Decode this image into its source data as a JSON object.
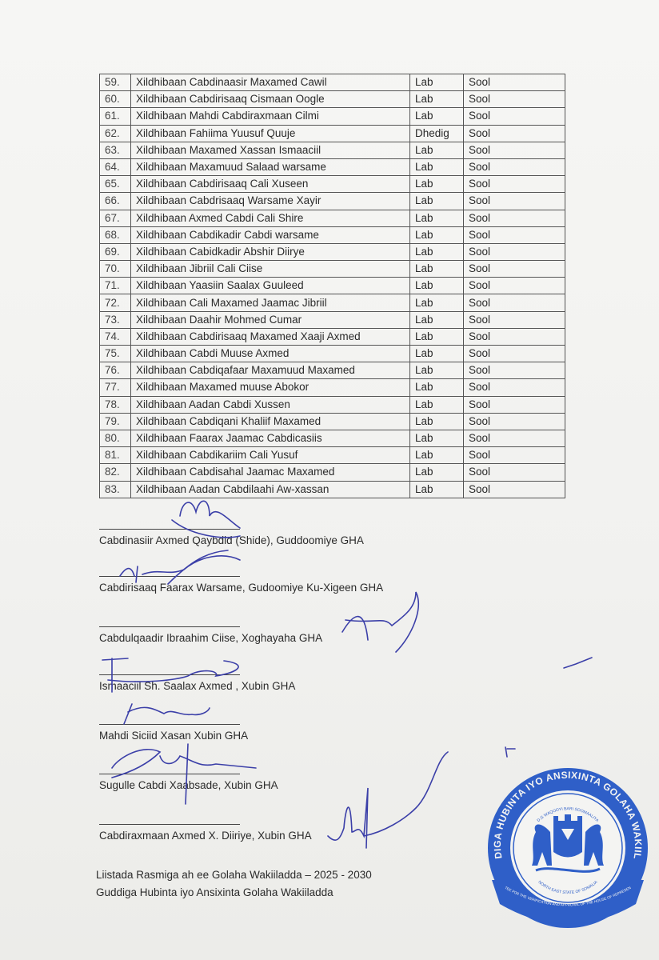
{
  "table": {
    "rows": [
      {
        "num": "59.",
        "name": "Xildhibaan Cabdinaasir Maxamed Cawil",
        "gender": "Lab",
        "region": "Sool"
      },
      {
        "num": "60.",
        "name": "Xildhibaan Cabdirisaaq Cismaan Oogle",
        "gender": "Lab",
        "region": "Sool"
      },
      {
        "num": "61.",
        "name": "Xildhibaan Mahdi Cabdiraxmaan Cilmi",
        "gender": "Lab",
        "region": "Sool"
      },
      {
        "num": "62.",
        "name": "Xildhibaan Fahiima Yuusuf Quuje",
        "gender": "Dhedig",
        "region": "Sool"
      },
      {
        "num": "63.",
        "name": "Xildhibaan Maxamed Xassan Ismaaciil",
        "gender": "Lab",
        "region": "Sool"
      },
      {
        "num": "64.",
        "name": "Xildhibaan Maxamuud Salaad warsame",
        "gender": "Lab",
        "region": "Sool"
      },
      {
        "num": "65.",
        "name": "Xildhibaan Cabdirisaaq Cali Xuseen",
        "gender": "Lab",
        "region": "Sool"
      },
      {
        "num": "66.",
        "name": "Xildhibaan Cabdrisaaq Warsame Xayir",
        "gender": "Lab",
        "region": "Sool"
      },
      {
        "num": "67.",
        "name": "Xildhibaan Axmed Cabdi Cali Shire",
        "gender": "Lab",
        "region": "Sool"
      },
      {
        "num": "68.",
        "name": "Xildhibaan Cabdikadir Cabdi warsame",
        "gender": "Lab",
        "region": "Sool"
      },
      {
        "num": "69.",
        "name": "Xildhibaan Cabidkadir Abshir Diirye",
        "gender": "Lab",
        "region": "Sool"
      },
      {
        "num": "70.",
        "name": "Xildhibaan Jibriil Cali Ciise",
        "gender": "Lab",
        "region": "Sool"
      },
      {
        "num": "71.",
        "name": "Xildhibaan Yaasiin Saalax Guuleed",
        "gender": "Lab",
        "region": "Sool"
      },
      {
        "num": "72.",
        "name": "Xildhibaan Cali Maxamed Jaamac Jibriil",
        "gender": "Lab",
        "region": "Sool"
      },
      {
        "num": "73.",
        "name": "Xildhibaan Daahir Mohmed Cumar",
        "gender": "Lab",
        "region": "Sool"
      },
      {
        "num": "74.",
        "name": "Xildhibaan Cabdirisaaq Maxamed Xaaji Axmed",
        "gender": "Lab",
        "region": "Sool"
      },
      {
        "num": "75.",
        "name": "Xildhibaan Cabdi Muuse Axmed",
        "gender": "Lab",
        "region": "Sool"
      },
      {
        "num": "76.",
        "name": "Xildhibaan Cabdiqafaar Maxamuud Maxamed",
        "gender": "Lab",
        "region": "Sool"
      },
      {
        "num": "77.",
        "name": "Xildhibaan Maxamed muuse Abokor",
        "gender": "Lab",
        "region": "Sool"
      },
      {
        "num": "78.",
        "name": "Xildhibaan Aadan Cabdi Xussen",
        "gender": "Lab",
        "region": "Sool"
      },
      {
        "num": "79.",
        "name": "Xildhibaan Cabdiqani Khaliif Maxamed",
        "gender": "Lab",
        "region": "Sool"
      },
      {
        "num": "80.",
        "name": "Xildhibaan Faarax Jaamac Cabdicasiis",
        "gender": "Lab",
        "region": "Sool"
      },
      {
        "num": "81.",
        "name": "Xildhibaan Cabdikariim Cali Yusuf",
        "gender": "Lab",
        "region": "Sool"
      },
      {
        "num": "82.",
        "name": "Xildhibaan Cabdisahal Jaamac Maxamed",
        "gender": "Lab",
        "region": "Sool"
      },
      {
        "num": "83.",
        "name": "Xildhibaan Aadan Cabdilaahi Aw-xassan",
        "gender": "Lab",
        "region": "Sool"
      }
    ]
  },
  "signatories": [
    "Cabdinasiir Axmed Qaybdid (Shide), Guddoomiye GHA",
    "Cabdirisaaq Faarax Warsame, Gudoomiye Ku-Xigeen GHA",
    "Cabdulqaadir Ibraahim Ciise, Xoghayaha GHA",
    "Ismaaciil Sh. Saalax Axmed , Xubin GHA",
    "Mahdi Siciid Xasan Xubin GHA",
    "Sugulle Cabdi Xaabsade, Xubin GHA",
    "Cabdiraxmaan Axmed X. Diiriye, Xubin GHA"
  ],
  "footer": {
    "line1": "Liistada Rasmiga ah ee Golaha Wakiiladda – 2025 - 2030",
    "line2": "Guddiga Hubinta iyo Ansixinta Golaha Wakiiladda"
  },
  "seal": {
    "outer_text": "GUDDIGA HUBINTA IYO ANSIXINTA GOLAHA WAKIILADA",
    "inner_top": "D.G WAQOOYI BARI SOOMAALIYA",
    "inner_bottom": "NORTH EAST STATE OF SOMALIA",
    "ribbon_text": "COMMITTEE FOR THE VERIFICATION AND APPROVAL OF THE HOUSE OF REPRESENTATIVES",
    "color": "#2f5fc8"
  },
  "ink_color": "#3b3fa8"
}
